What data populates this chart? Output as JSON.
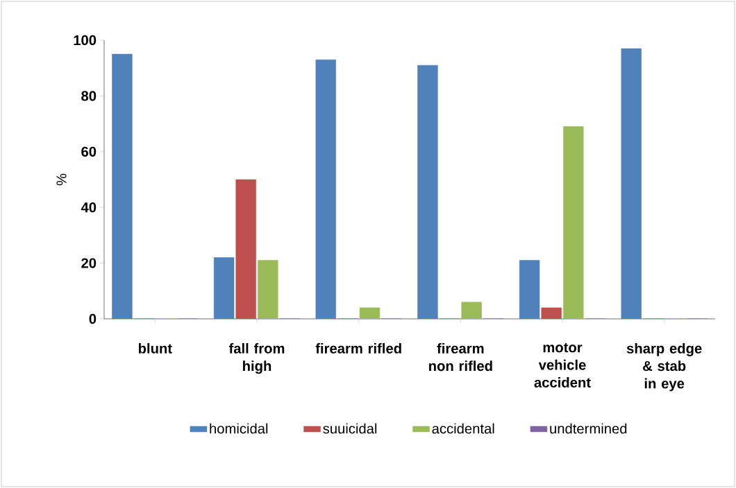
{
  "chart_data": {
    "type": "bar",
    "ylabel": "%",
    "categories": [
      "blunt",
      "fall from high",
      "firearm rifled",
      "firearm non rifled",
      "motor vehicle accident",
      "sharp edge & stab in eye"
    ],
    "series": [
      {
        "name": "homicidal",
        "color": "#4f81bd",
        "values": [
          95,
          22,
          93,
          91,
          21,
          97
        ]
      },
      {
        "name": "suuicidal",
        "color": "#c0504d",
        "values": [
          0,
          50,
          0,
          0,
          4,
          0
        ]
      },
      {
        "name": "accidental",
        "color": "#9bbb59",
        "values": [
          0,
          21,
          4,
          6,
          69,
          0
        ]
      },
      {
        "name": "undtermined",
        "color": "#8064a2",
        "values": [
          0,
          0,
          0,
          0,
          0,
          0
        ]
      }
    ],
    "ylim": [
      0,
      100
    ],
    "yticks": [
      0,
      20,
      40,
      60,
      80,
      100
    ],
    "grid": false,
    "legend": "bottom"
  }
}
